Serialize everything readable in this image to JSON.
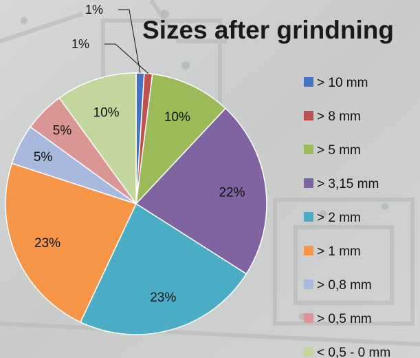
{
  "chart_data": {
    "type": "pie",
    "title": "Sizes after grindning",
    "legend_position": "right",
    "slices": [
      {
        "label": "> 10 mm",
        "value": 1,
        "display": "1%",
        "color": "#4472c4"
      },
      {
        "label": "> 8 mm",
        "value": 1,
        "display": "1%",
        "color": "#c0504d"
      },
      {
        "label": "> 5 mm",
        "value": 10,
        "display": "10%",
        "color": "#9bbb59"
      },
      {
        "label": "> 3,15 mm",
        "value": 22,
        "display": "22%",
        "color": "#8064a2"
      },
      {
        "label": "> 2 mm",
        "value": 23,
        "display": "23%",
        "color": "#4bacc6"
      },
      {
        "label": "> 1 mm",
        "value": 23,
        "display": "23%",
        "color": "#f79646"
      },
      {
        "label": "> 0,8 mm",
        "value": 5,
        "display": "5%",
        "color": "#a9b9de"
      },
      {
        "label": "> 0,5 mm",
        "value": 5,
        "display": "5%",
        "color": "#d99694"
      },
      {
        "label": "< 0,5 - 0 mm",
        "value": 10,
        "display": "10%",
        "color": "#c3d69b"
      }
    ]
  }
}
